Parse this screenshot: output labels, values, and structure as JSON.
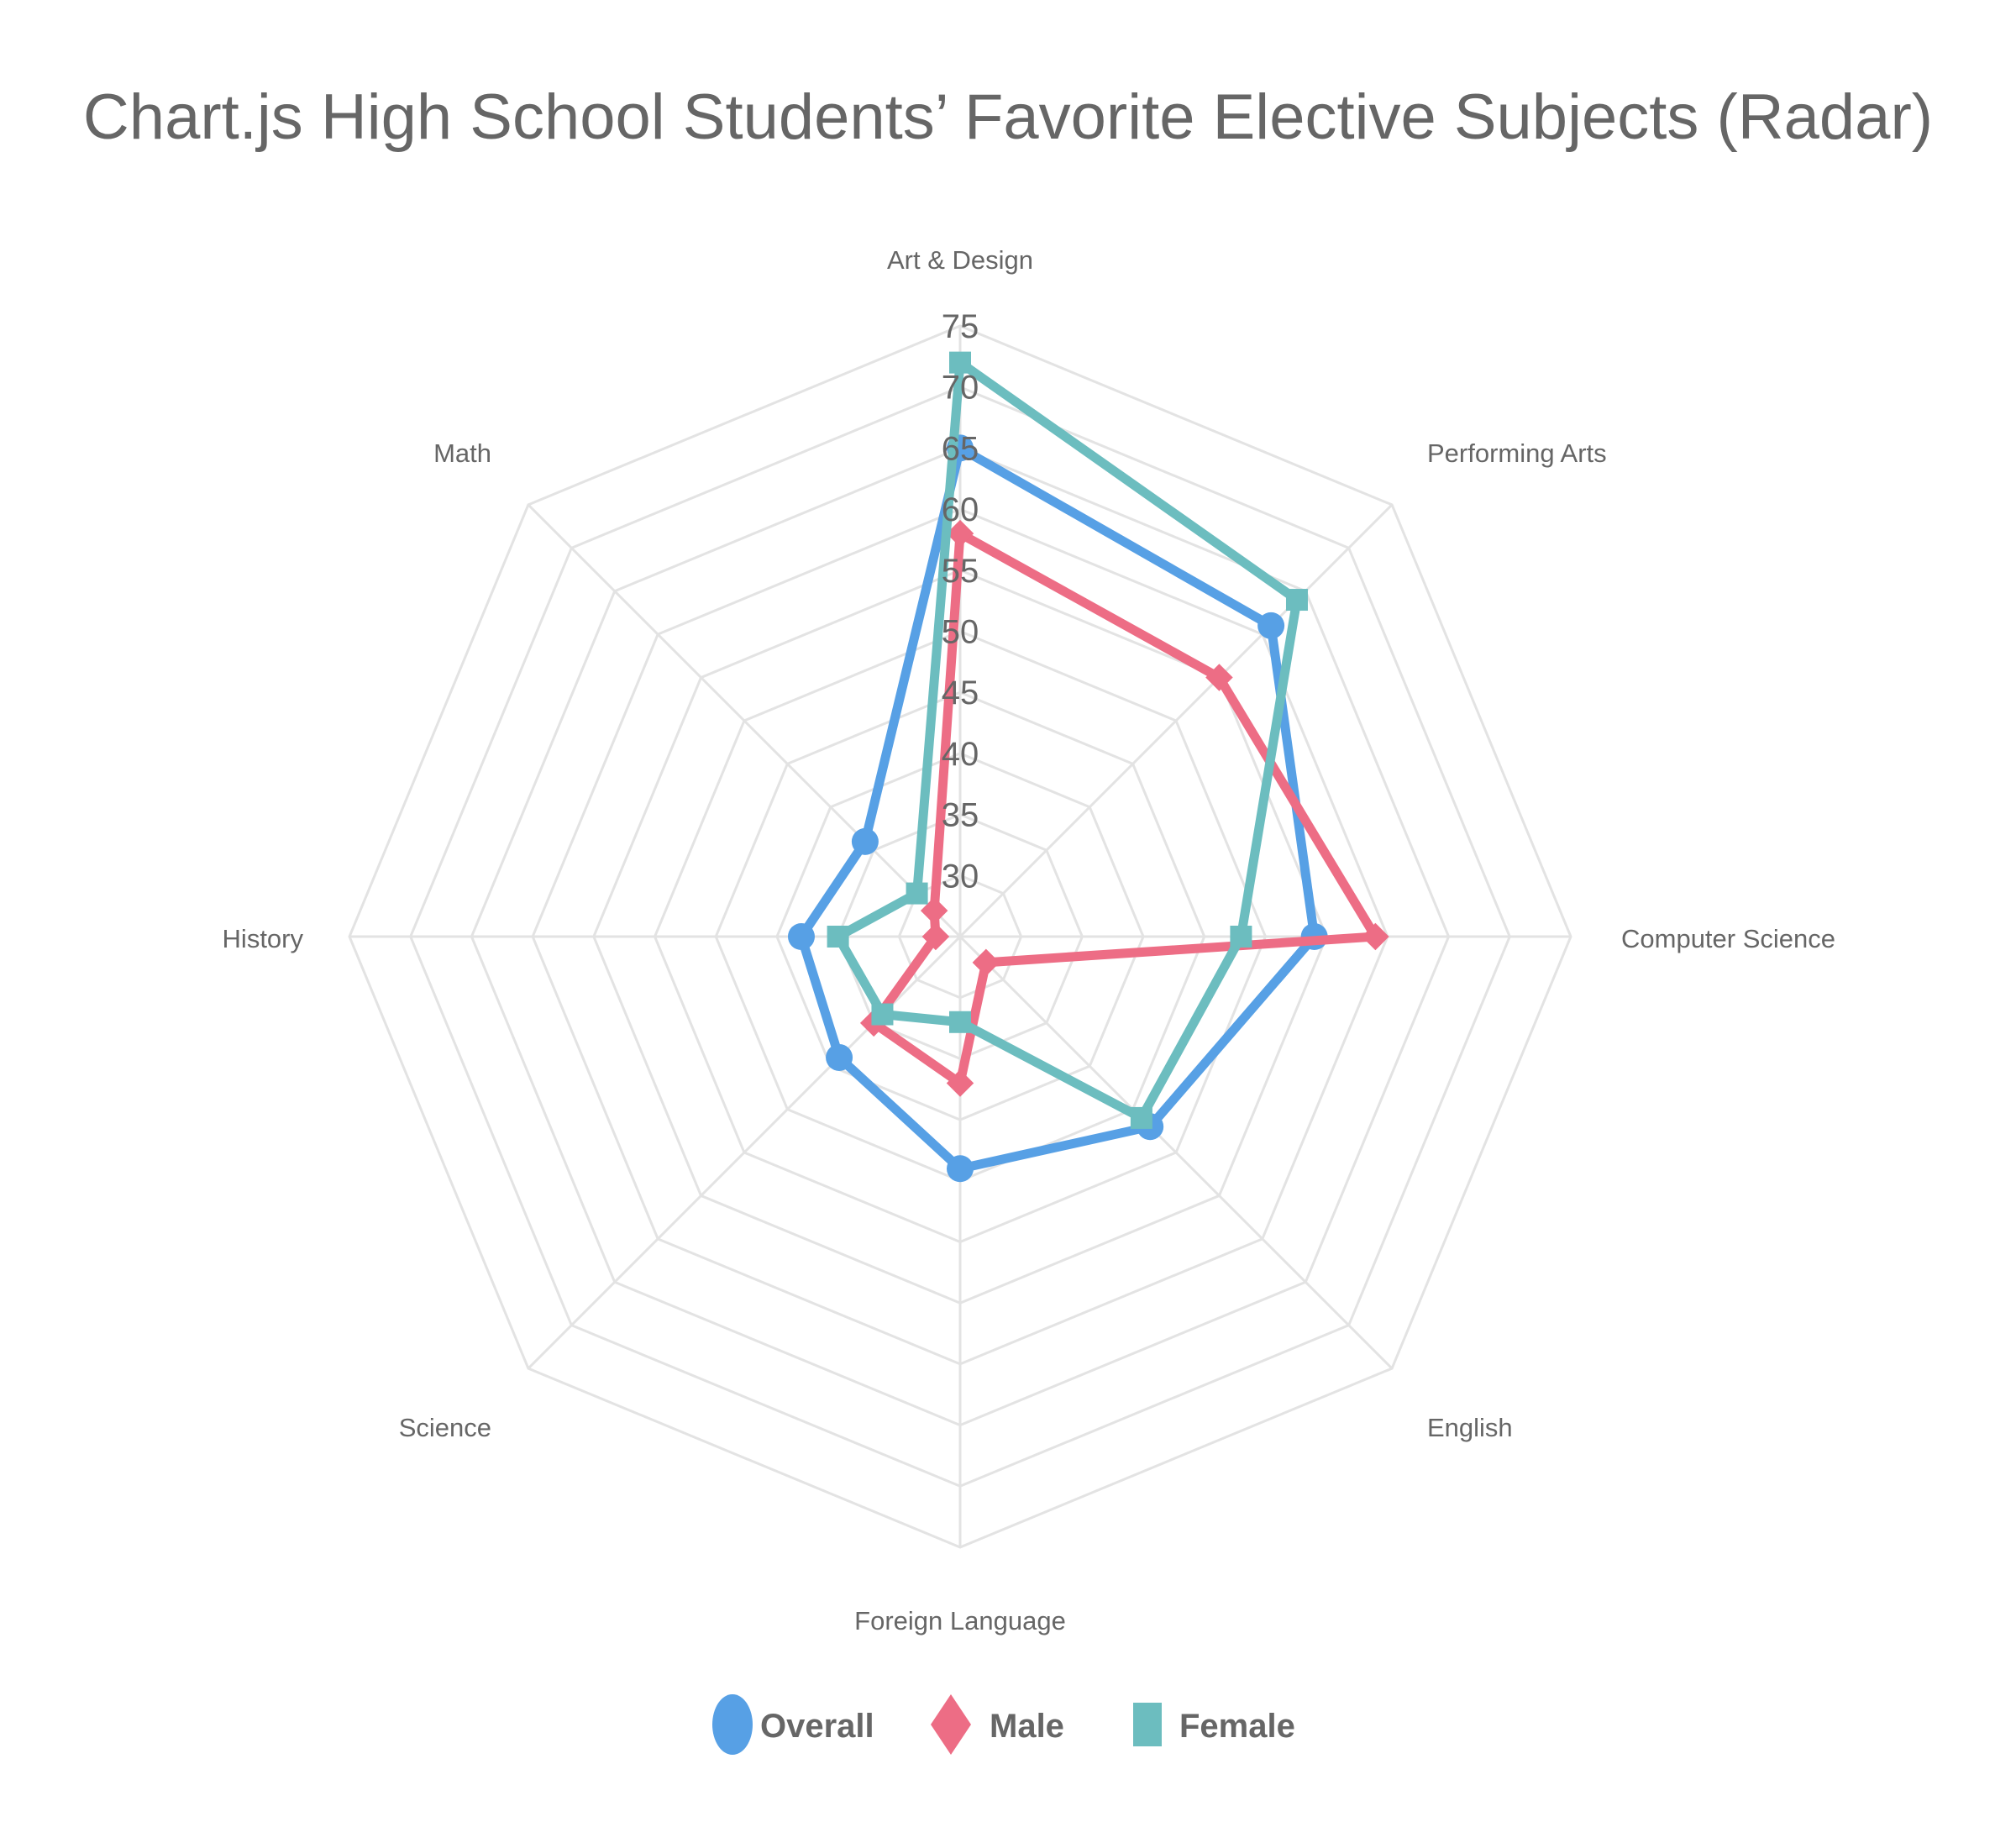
{
  "title": "Chart.js High School Students’ Favorite Elective Subjects (Radar)",
  "colors": {
    "overall": "#57a0e5",
    "male": "#ed6d85",
    "female": "#6cbdbf",
    "grid": "#e3e3e3",
    "text": "#666666"
  },
  "legend": [
    {
      "label": "Overall",
      "marker": "circle",
      "color": "#57a0e5"
    },
    {
      "label": "Male",
      "marker": "diamond",
      "color": "#ed6d85"
    },
    {
      "label": "Female",
      "marker": "square",
      "color": "#6cbdbf"
    }
  ],
  "chart_data": {
    "type": "radar",
    "title": "Chart.js High School Students’ Favorite Elective Subjects (Radar)",
    "categories": [
      "Art & Design",
      "Performing Arts",
      "Computer Science",
      "English",
      "Foreign Language",
      "Science",
      "History",
      "Math"
    ],
    "series": [
      {
        "name": "Overall",
        "marker": "circle",
        "color": "#57a0e5",
        "values": [
          65,
          61,
          54,
          47,
          44,
          39,
          38,
          36
        ]
      },
      {
        "name": "Male",
        "marker": "diamond",
        "color": "#ed6d85",
        "values": [
          58,
          55,
          59,
          28,
          37,
          35,
          27,
          28
        ]
      },
      {
        "name": "Female",
        "marker": "square",
        "color": "#6cbdbf",
        "values": [
          72,
          64,
          48,
          46,
          32,
          34,
          35,
          30
        ]
      }
    ],
    "r_min": 25,
    "r_max": 75,
    "r_ticks": [
      30,
      35,
      40,
      45,
      50,
      55,
      60,
      65,
      70,
      75
    ],
    "grid": true,
    "legend_position": "bottom"
  }
}
